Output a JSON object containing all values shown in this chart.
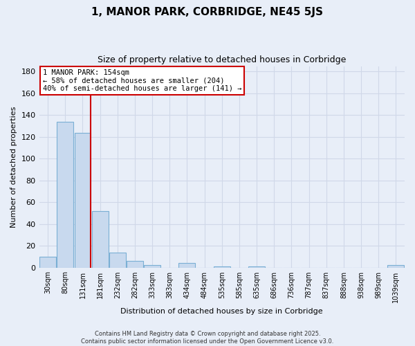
{
  "title": "1, MANOR PARK, CORBRIDGE, NE45 5JS",
  "subtitle": "Size of property relative to detached houses in Corbridge",
  "xlabel": "Distribution of detached houses by size in Corbridge",
  "ylabel": "Number of detached properties",
  "bar_color": "#c8d9ee",
  "bar_edge_color": "#7aafd4",
  "vline_x": 154,
  "vline_color": "#cc0000",
  "bin_labels": [
    "30sqm",
    "80sqm",
    "131sqm",
    "181sqm",
    "232sqm",
    "282sqm",
    "333sqm",
    "383sqm",
    "434sqm",
    "484sqm",
    "535sqm",
    "585sqm",
    "635sqm",
    "686sqm",
    "736sqm",
    "787sqm",
    "837sqm",
    "888sqm",
    "938sqm",
    "989sqm",
    "1039sqm"
  ],
  "bar_heights": [
    10,
    134,
    124,
    52,
    14,
    6,
    2,
    0,
    4,
    0,
    1,
    0,
    1,
    0,
    0,
    0,
    0,
    0,
    0,
    0,
    2
  ],
  "num_bins": 21,
  "ylim": [
    0,
    185
  ],
  "yticks": [
    0,
    20,
    40,
    60,
    80,
    100,
    120,
    140,
    160,
    180
  ],
  "annotation_line1": "1 MANOR PARK: 154sqm",
  "annotation_line2": "← 58% of detached houses are smaller (204)",
  "annotation_line3": "40% of semi-detached houses are larger (141) →",
  "annotation_box_color": "#ffffff",
  "annotation_box_edge": "#cc0000",
  "footer_line1": "Contains HM Land Registry data © Crown copyright and database right 2025.",
  "footer_line2": "Contains public sector information licensed under the Open Government Licence v3.0.",
  "background_color": "#e8eef8",
  "grid_color": "#d0d8e8"
}
